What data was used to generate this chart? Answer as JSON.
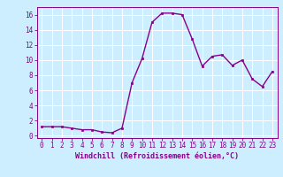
{
  "x": [
    0,
    1,
    2,
    3,
    4,
    5,
    6,
    7,
    8,
    9,
    10,
    11,
    12,
    13,
    14,
    15,
    16,
    17,
    18,
    19,
    20,
    21,
    22,
    23
  ],
  "y": [
    1.2,
    1.2,
    1.2,
    1.0,
    0.8,
    0.8,
    0.5,
    0.4,
    1.0,
    7.0,
    10.2,
    15.0,
    16.2,
    16.2,
    16.0,
    12.8,
    9.2,
    10.5,
    10.7,
    9.3,
    10.0,
    7.5,
    6.5,
    8.5
  ],
  "line_color": "#880088",
  "marker": "s",
  "marker_size": 2,
  "bg_color": "#cceeff",
  "grid_color": "#ffffff",
  "xlabel": "Windchill (Refroidissement éolien,°C)",
  "xlabel_color": "#880088",
  "tick_color": "#880088",
  "spine_color": "#880088",
  "ylim": [
    -0.3,
    17
  ],
  "xlim": [
    -0.5,
    23.5
  ],
  "yticks": [
    0,
    2,
    4,
    6,
    8,
    10,
    12,
    14,
    16
  ],
  "xticks": [
    0,
    1,
    2,
    3,
    4,
    5,
    6,
    7,
    8,
    9,
    10,
    11,
    12,
    13,
    14,
    15,
    16,
    17,
    18,
    19,
    20,
    21,
    22,
    23
  ],
  "tick_fontsize": 5.5,
  "xlabel_fontsize": 6.0,
  "linewidth": 1.0
}
